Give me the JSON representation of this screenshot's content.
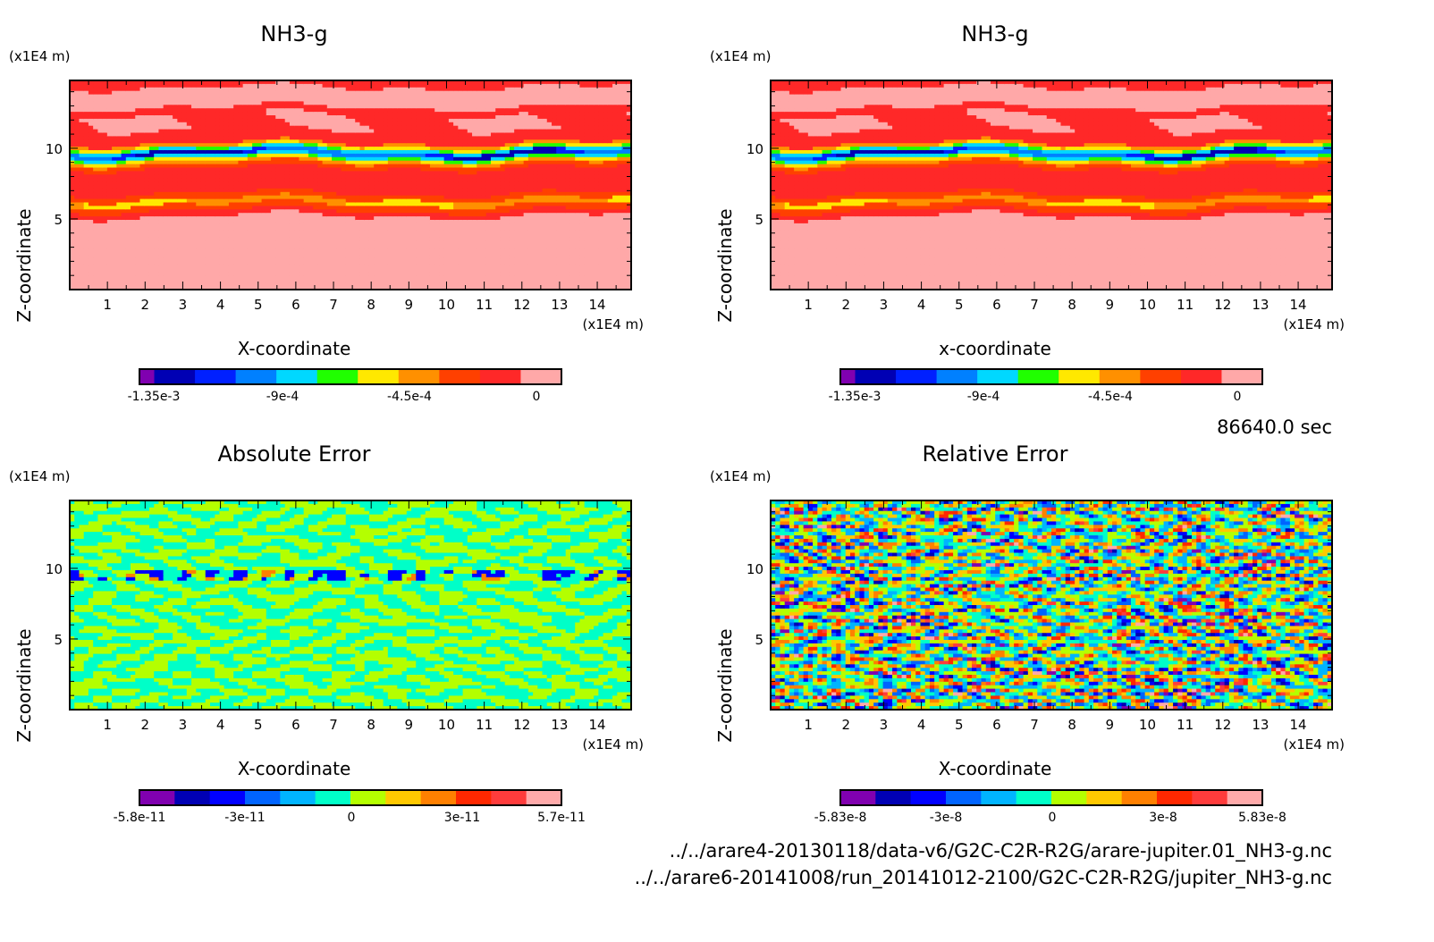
{
  "chart_data": [
    {
      "type": "heatmap",
      "title": "NH3-g",
      "xlabel": "X-coordinate",
      "ylabel": "Z-coordinate",
      "x_unit": "(x1E4 m)",
      "y_unit": "(x1E4 m)",
      "xlim": [
        0,
        14.9
      ],
      "ylim": [
        0,
        14.8
      ],
      "xticks": [
        "1",
        "2",
        "3",
        "4",
        "5",
        "6",
        "7",
        "8",
        "9",
        "10",
        "11",
        "12",
        "13",
        "14"
      ],
      "yticks": [
        "5",
        "10"
      ],
      "colorbar": {
        "colors": [
          "#8000b0",
          "#0000b4",
          "#0020ff",
          "#0080ff",
          "#00d8ff",
          "#20ff00",
          "#ffe800",
          "#ff9000",
          "#ff4000",
          "#ff2828",
          "#ffa8a8"
        ],
        "labels": [
          "-1.35e-3",
          "-9e-4",
          "-4.5e-4",
          "0"
        ]
      }
    },
    {
      "type": "heatmap",
      "title": "NH3-g",
      "xlabel": "x-coordinate",
      "ylabel": "Z-coordinate",
      "x_unit": "(x1E4 m)",
      "y_unit": "(x1E4 m)",
      "xlim": [
        0,
        14.9
      ],
      "ylim": [
        0,
        14.8
      ],
      "xticks": [
        "1",
        "2",
        "3",
        "4",
        "5",
        "6",
        "7",
        "8",
        "9",
        "10",
        "11",
        "12",
        "13",
        "14"
      ],
      "yticks": [
        "5",
        "10"
      ],
      "colorbar": {
        "colors": [
          "#8000b0",
          "#0000b4",
          "#0020ff",
          "#0080ff",
          "#00d8ff",
          "#20ff00",
          "#ffe800",
          "#ff9000",
          "#ff4000",
          "#ff2828",
          "#ffa8a8"
        ],
        "labels": [
          "-1.35e-3",
          "-9e-4",
          "-4.5e-4",
          "0"
        ]
      }
    },
    {
      "type": "heatmap",
      "title": "Absolute Error",
      "xlabel": "X-coordinate",
      "ylabel": "Z-coordinate",
      "x_unit": "(x1E4 m)",
      "y_unit": "(x1E4 m)",
      "xlim": [
        0,
        14.9
      ],
      "ylim": [
        0,
        14.8
      ],
      "xticks": [
        "1",
        "2",
        "3",
        "4",
        "5",
        "6",
        "7",
        "8",
        "9",
        "10",
        "11",
        "12",
        "13",
        "14"
      ],
      "yticks": [
        "5",
        "10"
      ],
      "colorbar": {
        "colors": [
          "#8000b0",
          "#0000b4",
          "#0000ff",
          "#0064ff",
          "#00b4ff",
          "#00ffc8",
          "#b4ff00",
          "#ffc800",
          "#ff8000",
          "#ff2800",
          "#ff3c3c",
          "#ffaaaa"
        ],
        "labels": [
          "-5.8e-11",
          "-3e-11",
          "0",
          "3e-11",
          "5.7e-11"
        ]
      }
    },
    {
      "type": "heatmap",
      "title": "Relative Error",
      "xlabel": "X-coordinate",
      "ylabel": "Z-coordinate",
      "x_unit": "(x1E4 m)",
      "y_unit": "(x1E4 m)",
      "xlim": [
        0,
        14.9
      ],
      "ylim": [
        0,
        14.8
      ],
      "xticks": [
        "1",
        "2",
        "3",
        "4",
        "5",
        "6",
        "7",
        "8",
        "9",
        "10",
        "11",
        "12",
        "13",
        "14"
      ],
      "yticks": [
        "5",
        "10"
      ],
      "colorbar": {
        "colors": [
          "#8000b0",
          "#0000b4",
          "#0000ff",
          "#0064ff",
          "#00b4ff",
          "#00ffc8",
          "#b4ff00",
          "#ffc800",
          "#ff8000",
          "#ff2800",
          "#ff3c3c",
          "#ffaaaa"
        ],
        "labels": [
          "-5.83e-8",
          "-3e-8",
          "0",
          "3e-8",
          "5.83e-8"
        ]
      }
    }
  ],
  "time_label": "86640.0 sec",
  "files": [
    "../../arare4-20130118/data-v6/G2C-C2R-R2G/arare-jupiter.01_NH3-g.nc",
    "../../arare6-20141008/run_20141012-2100/G2C-C2R-R2G/jupiter_NH3-g.nc"
  ]
}
